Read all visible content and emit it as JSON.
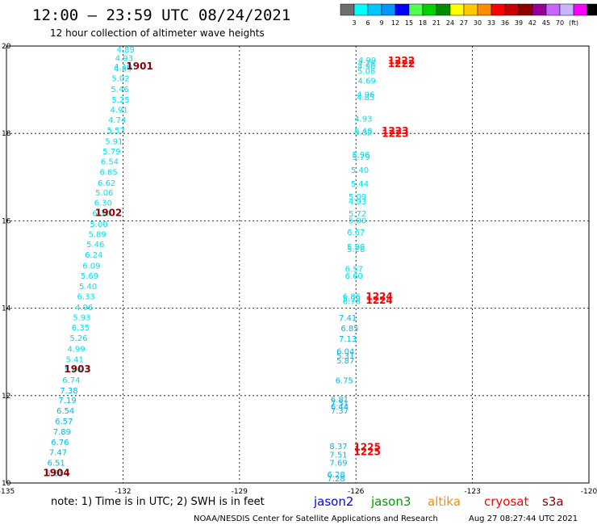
{
  "title": "12:00 – 23:59 UTC 08/24/2021",
  "subtitle": "12 hour collection of altimeter wave heights",
  "colorbar": {
    "colors": [
      "#6e6e6e",
      "#00ffff",
      "#00c8ff",
      "#0096ff",
      "#0000ff",
      "#50ff50",
      "#00d200",
      "#008c00",
      "#ffff00",
      "#ffc800",
      "#ff8c00",
      "#ff0000",
      "#c80000",
      "#8c0000",
      "#960096",
      "#c864ff",
      "#c8b4ff",
      "#ff00ff",
      "#000000"
    ],
    "labels": [
      "3",
      "6",
      "9",
      "12",
      "15",
      "18",
      "21",
      "24",
      "27",
      "30",
      "33",
      "36",
      "39",
      "42",
      "45",
      "70",
      "(ft)"
    ]
  },
  "footer": {
    "note": "note: 1) Time is in UTC; 2) SWH is in feet",
    "satellites": [
      {
        "name": "jason2",
        "color": "#0000ff"
      },
      {
        "name": "jason3",
        "color": "#00a000"
      },
      {
        "name": "altika",
        "color": "#ff8c00"
      },
      {
        "name": "cryosat",
        "color": "#ff0000"
      },
      {
        "name": "s3a",
        "color": "#8c0000"
      }
    ],
    "credit": "NOAA/NESDIS Center for Satellite Applications and Research",
    "timestamp": "Aug 27 08:27:44 UTC 2021"
  },
  "chart_data": {
    "type": "scatter",
    "title": "12:00 – 23:59 UTC 08/24/2021",
    "subtitle": "12 hour collection of altimeter wave heights",
    "xlim": [
      -135,
      -120
    ],
    "ylim": [
      10,
      20
    ],
    "xticks": [
      "-135",
      "-132",
      "-129",
      "-126",
      "-123",
      "-120"
    ],
    "yticks": [
      "10",
      "12",
      "14",
      "16",
      "18",
      "20"
    ],
    "grid": true,
    "value_colors": {
      "cyan": "#00e0ee",
      "blue": "#00b8e8"
    },
    "time_colors": {
      "s3a": "#8c0000",
      "cryosat": "#ff0000"
    },
    "tracks": [
      {
        "name": "track1",
        "points": [
          {
            "x": -131.93,
            "y": 19.93,
            "v": "4.89",
            "c": "cyan"
          },
          {
            "x": -131.97,
            "y": 19.73,
            "v": "4.93",
            "c": "cyan"
          },
          {
            "x": -132.0,
            "y": 19.54,
            "v": "4.10",
            "c": "cyan"
          },
          {
            "x": -132.0,
            "y": 19.49,
            "v": "4.89",
            "c": "cyan"
          },
          {
            "x": -132.06,
            "y": 19.27,
            "v": "5.02",
            "c": "cyan"
          },
          {
            "x": -132.08,
            "y": 19.02,
            "v": "5.46",
            "c": "cyan"
          },
          {
            "x": -132.06,
            "y": 18.78,
            "v": "5.25",
            "c": "cyan"
          },
          {
            "x": -132.1,
            "y": 18.55,
            "v": "4.91",
            "c": "cyan"
          },
          {
            "x": -132.15,
            "y": 18.32,
            "v": "4.74",
            "c": "cyan"
          },
          {
            "x": -132.18,
            "y": 18.08,
            "v": "5.57",
            "c": "cyan"
          },
          {
            "x": -132.23,
            "y": 17.83,
            "v": "5.91",
            "c": "cyan"
          },
          {
            "x": -132.29,
            "y": 17.6,
            "v": "5.79",
            "c": "cyan"
          },
          {
            "x": -132.34,
            "y": 17.37,
            "v": "6.54",
            "c": "cyan"
          },
          {
            "x": -132.37,
            "y": 17.13,
            "v": "6.85",
            "c": "cyan"
          },
          {
            "x": -132.42,
            "y": 16.88,
            "v": "6.62",
            "c": "cyan"
          },
          {
            "x": -132.48,
            "y": 16.65,
            "v": "5.06",
            "c": "cyan"
          },
          {
            "x": -132.51,
            "y": 16.42,
            "v": "6.30",
            "c": "cyan"
          },
          {
            "x": -132.56,
            "y": 16.18,
            "v": "6.30",
            "c": "cyan"
          },
          {
            "x": -132.62,
            "y": 15.93,
            "v": "5.00",
            "c": "cyan"
          },
          {
            "x": -132.66,
            "y": 15.7,
            "v": "5.89",
            "c": "cyan"
          },
          {
            "x": -132.71,
            "y": 15.47,
            "v": "5.46",
            "c": "cyan"
          },
          {
            "x": -132.75,
            "y": 15.23,
            "v": "6.24",
            "c": "cyan"
          },
          {
            "x": -132.81,
            "y": 14.98,
            "v": "6.09",
            "c": "cyan"
          },
          {
            "x": -132.86,
            "y": 14.75,
            "v": "5.69",
            "c": "cyan"
          },
          {
            "x": -132.9,
            "y": 14.51,
            "v": "5.40",
            "c": "cyan"
          },
          {
            "x": -132.95,
            "y": 14.28,
            "v": "6.33",
            "c": "cyan"
          },
          {
            "x": -133.0,
            "y": 14.03,
            "v": "4.96",
            "c": "cyan"
          },
          {
            "x": -133.06,
            "y": 13.8,
            "v": "5.93",
            "c": "cyan"
          },
          {
            "x": -133.09,
            "y": 13.57,
            "v": "6.35",
            "c": "cyan"
          },
          {
            "x": -133.14,
            "y": 13.33,
            "v": "5.26",
            "c": "cyan"
          },
          {
            "x": -133.2,
            "y": 13.08,
            "v": "4.99",
            "c": "cyan"
          },
          {
            "x": -133.24,
            "y": 12.84,
            "v": "5.41",
            "c": "cyan"
          },
          {
            "x": -133.28,
            "y": 12.61,
            "v": "5.46",
            "c": "cyan"
          },
          {
            "x": -133.33,
            "y": 12.37,
            "v": "6.74",
            "c": "cyan"
          },
          {
            "x": -133.39,
            "y": 12.13,
            "v": "7.38",
            "c": "blue"
          },
          {
            "x": -133.43,
            "y": 11.9,
            "v": "7.19",
            "c": "blue"
          },
          {
            "x": -133.48,
            "y": 11.66,
            "v": "6.54",
            "c": "blue"
          },
          {
            "x": -133.52,
            "y": 11.42,
            "v": "6.57",
            "c": "blue"
          },
          {
            "x": -133.57,
            "y": 11.18,
            "v": "7.89",
            "c": "blue"
          },
          {
            "x": -133.62,
            "y": 10.94,
            "v": "6.76",
            "c": "blue"
          },
          {
            "x": -133.67,
            "y": 10.71,
            "v": "7.47",
            "c": "blue"
          },
          {
            "x": -133.72,
            "y": 10.47,
            "v": "6.51",
            "c": "blue"
          },
          {
            "x": -133.76,
            "y": 10.23,
            "v": "6.65",
            "c": "blue"
          }
        ],
        "times": [
          {
            "x": -131.57,
            "y": 19.54,
            "label": "1901",
            "sat": "s3a"
          },
          {
            "x": -132.37,
            "y": 16.18,
            "label": "1902",
            "sat": "s3a"
          },
          {
            "x": -133.17,
            "y": 12.61,
            "label": "1903",
            "sat": "s3a"
          },
          {
            "x": -133.71,
            "y": 10.23,
            "label": "1904",
            "sat": "s3a"
          }
        ]
      },
      {
        "name": "track2",
        "points": [
          {
            "x": -125.71,
            "y": 19.69,
            "v": "4.99",
            "c": "cyan"
          },
          {
            "x": -125.73,
            "y": 19.61,
            "v": "4.78",
            "c": "cyan"
          },
          {
            "x": -125.73,
            "y": 19.55,
            "v": "4.90",
            "c": "cyan"
          },
          {
            "x": -125.73,
            "y": 19.44,
            "v": "5.08",
            "c": "cyan"
          },
          {
            "x": -125.72,
            "y": 19.21,
            "v": "4.69",
            "c": "cyan"
          },
          {
            "x": -125.75,
            "y": 18.9,
            "v": "4.96",
            "c": "cyan"
          },
          {
            "x": -125.75,
            "y": 18.84,
            "v": "4.85",
            "c": "cyan"
          },
          {
            "x": -125.81,
            "y": 18.35,
            "v": "4.93",
            "c": "cyan"
          },
          {
            "x": -125.81,
            "y": 18.07,
            "v": "5.48",
            "c": "cyan"
          },
          {
            "x": -125.81,
            "y": 18.03,
            "v": "5.32",
            "c": "cyan"
          },
          {
            "x": -125.87,
            "y": 17.52,
            "v": "5.96",
            "c": "cyan"
          },
          {
            "x": -125.87,
            "y": 17.47,
            "v": "5.79",
            "c": "cyan"
          },
          {
            "x": -125.9,
            "y": 17.17,
            "v": "5.40",
            "c": "cyan"
          },
          {
            "x": -125.9,
            "y": 16.86,
            "v": "5.44",
            "c": "cyan"
          },
          {
            "x": -125.96,
            "y": 16.56,
            "v": "5.09",
            "c": "cyan"
          },
          {
            "x": -125.96,
            "y": 16.45,
            "v": "4.93",
            "c": "cyan"
          },
          {
            "x": -125.96,
            "y": 16.17,
            "v": "5.72",
            "c": "cyan"
          },
          {
            "x": -125.96,
            "y": 16.02,
            "v": "5.00",
            "c": "cyan"
          },
          {
            "x": -126.0,
            "y": 15.75,
            "v": "6.67",
            "c": "cyan"
          },
          {
            "x": -126.0,
            "y": 15.42,
            "v": "5.99",
            "c": "cyan"
          },
          {
            "x": -126.0,
            "y": 15.36,
            "v": "5.28",
            "c": "cyan"
          },
          {
            "x": -126.05,
            "y": 14.91,
            "v": "6.57",
            "c": "cyan"
          },
          {
            "x": -126.05,
            "y": 14.75,
            "v": "6.60",
            "c": "cyan"
          },
          {
            "x": -126.11,
            "y": 14.28,
            "v": "6.86",
            "c": "cyan"
          },
          {
            "x": -126.11,
            "y": 14.23,
            "v": "5.99",
            "c": "cyan"
          },
          {
            "x": -126.11,
            "y": 14.17,
            "v": "6.76",
            "c": "cyan"
          },
          {
            "x": -126.21,
            "y": 13.79,
            "v": "7.41",
            "c": "blue"
          },
          {
            "x": -126.16,
            "y": 13.55,
            "v": "6.85",
            "c": "blue"
          },
          {
            "x": -126.21,
            "y": 13.31,
            "v": "7.13",
            "c": "blue"
          },
          {
            "x": -126.27,
            "y": 13.02,
            "v": "6.04",
            "c": "blue"
          },
          {
            "x": -126.27,
            "y": 12.92,
            "v": "5.31",
            "c": "blue"
          },
          {
            "x": -126.27,
            "y": 12.81,
            "v": "5.87",
            "c": "blue"
          },
          {
            "x": -126.3,
            "y": 12.36,
            "v": "6.75",
            "c": "blue"
          },
          {
            "x": -126.42,
            "y": 11.92,
            "v": "6.81",
            "c": "blue"
          },
          {
            "x": -126.42,
            "y": 11.84,
            "v": "7.51",
            "c": "blue"
          },
          {
            "x": -126.42,
            "y": 11.76,
            "v": "6.44",
            "c": "blue"
          },
          {
            "x": -126.42,
            "y": 11.66,
            "v": "7.37",
            "c": "blue"
          },
          {
            "x": -126.45,
            "y": 10.85,
            "v": "8.37",
            "c": "blue"
          },
          {
            "x": -126.45,
            "y": 10.66,
            "v": "7.51",
            "c": "blue"
          },
          {
            "x": -126.45,
            "y": 10.47,
            "v": "7.69",
            "c": "blue"
          },
          {
            "x": -126.51,
            "y": 10.2,
            "v": "6.28",
            "c": "blue"
          },
          {
            "x": -126.51,
            "y": 10.11,
            "v": "7.28",
            "c": "blue"
          }
        ],
        "times": [
          {
            "x": -124.83,
            "y": 19.67,
            "label": "1222",
            "sat": "cryosat"
          },
          {
            "x": -124.83,
            "y": 19.59,
            "label": "1222",
            "sat": "cryosat"
          },
          {
            "x": -124.99,
            "y": 18.06,
            "label": "1223",
            "sat": "cryosat"
          },
          {
            "x": -124.99,
            "y": 17.99,
            "label": "1223",
            "sat": "cryosat"
          },
          {
            "x": -125.4,
            "y": 14.27,
            "label": "1224",
            "sat": "cryosat"
          },
          {
            "x": -125.4,
            "y": 14.18,
            "label": "1224",
            "sat": "cryosat"
          },
          {
            "x": -125.71,
            "y": 10.82,
            "label": "1225",
            "sat": "cryosat"
          },
          {
            "x": -125.71,
            "y": 10.71,
            "label": "1225",
            "sat": "cryosat"
          }
        ]
      }
    ]
  }
}
